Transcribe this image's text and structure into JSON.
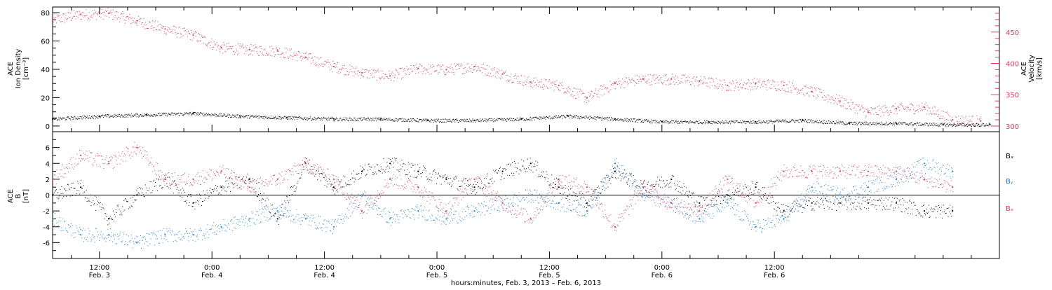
{
  "colors": {
    "velocity": "#e8365d",
    "density": "#000000",
    "bx": "#000000",
    "by": "#1a7fe0",
    "bz": "#e8365d"
  },
  "chart_data": [
    {
      "type": "scatter",
      "panel": "solar-wind",
      "ylabel_lines": [
        "ACE",
        "Ion Density",
        "[cm⁻³]"
      ],
      "y2label_lines": [
        "ACE",
        "Velocity",
        "[km/s]"
      ],
      "xlim_hours": [
        7.0,
        108.0
      ],
      "ylim": [
        -4,
        84
      ],
      "y2lim": [
        291,
        490
      ],
      "yticks": [
        0,
        20,
        40,
        60,
        80
      ],
      "y2ticks": [
        300,
        350,
        400,
        450
      ],
      "series": [
        {
          "axis": "right",
          "color_key": "velocity",
          "x": [
            7,
            10,
            13,
            16,
            19,
            22,
            25,
            28,
            31,
            34,
            37,
            40,
            43,
            46,
            49,
            52,
            55,
            58,
            61,
            64,
            67,
            70,
            73,
            76,
            79,
            82,
            85,
            88,
            91,
            94,
            97,
            100,
            103,
            106
          ],
          "values": [
            470,
            478,
            480,
            468,
            455,
            445,
            425,
            422,
            420,
            410,
            395,
            385,
            380,
            392,
            390,
            395,
            383,
            370,
            365,
            345,
            368,
            375,
            375,
            372,
            365,
            368,
            365,
            355,
            340,
            322,
            328,
            330,
            310,
            308
          ]
        },
        {
          "axis": "left",
          "color_key": "density",
          "x": [
            7,
            12,
            17,
            22,
            27,
            32,
            37,
            42,
            47,
            52,
            57,
            62,
            67,
            72,
            77,
            82,
            87,
            92,
            97,
            102,
            107
          ],
          "values": [
            5,
            7,
            8,
            9,
            7,
            6,
            5,
            5,
            4,
            4,
            5,
            7,
            5,
            3,
            3,
            3,
            4,
            2,
            2,
            1,
            1
          ]
        }
      ]
    },
    {
      "type": "scatter",
      "panel": "magnetic-field",
      "ylabel_lines": [
        "ACE",
        "B",
        "[nT]"
      ],
      "xlim_hours": [
        7.0,
        108.0
      ],
      "ylim": [
        -8,
        8
      ],
      "yticks": [
        -6,
        -4,
        -2,
        0,
        2,
        4,
        6
      ],
      "zero_line": true,
      "series": [
        {
          "name": "Bx",
          "color_key": "bx",
          "x": [
            7,
            10,
            13,
            16,
            19,
            22,
            25,
            28,
            31,
            34,
            37,
            40,
            43,
            46,
            49,
            52,
            55,
            58,
            61,
            64,
            67,
            70,
            73,
            76,
            79,
            82,
            85,
            88,
            91,
            94,
            97,
            100,
            103
          ],
          "values": [
            0,
            1,
            -3,
            0,
            2,
            -1,
            1,
            2,
            -3,
            4,
            1,
            3,
            4,
            3,
            2,
            1,
            3,
            4,
            1,
            -1,
            3,
            1,
            2,
            -1,
            0,
            1,
            -2,
            -1,
            -1,
            -1,
            -1,
            -2,
            -2
          ]
        },
        {
          "name": "By",
          "color_key": "by",
          "x": [
            7,
            10,
            13,
            16,
            19,
            22,
            25,
            28,
            31,
            34,
            37,
            40,
            43,
            46,
            49,
            52,
            55,
            58,
            61,
            64,
            67,
            70,
            73,
            76,
            79,
            82,
            85,
            88,
            91,
            94,
            97,
            100,
            103
          ],
          "values": [
            -3,
            -5,
            -5,
            -6,
            -5,
            -5,
            -4,
            -3,
            -2,
            -3,
            -4,
            0,
            -3,
            -2,
            -3,
            -2,
            -1,
            0,
            -1,
            -2,
            4,
            0,
            -1,
            -3,
            -1,
            -4,
            -3,
            1,
            0,
            1,
            2,
            4,
            3
          ]
        },
        {
          "name": "Bz",
          "color_key": "bz",
          "x": [
            7,
            10,
            13,
            16,
            19,
            22,
            25,
            28,
            31,
            34,
            37,
            40,
            43,
            46,
            49,
            52,
            55,
            58,
            61,
            64,
            67,
            70,
            73,
            76,
            79,
            82,
            85,
            88,
            91,
            94,
            97,
            100,
            103
          ],
          "values": [
            2,
            5,
            4,
            6,
            2,
            2,
            3,
            1,
            2,
            4,
            2,
            -2,
            2,
            1,
            -2,
            2,
            -1,
            -3,
            2,
            1,
            -4,
            1,
            -1,
            -2,
            2,
            -1,
            3,
            3,
            3,
            3,
            3,
            2,
            1
          ]
        }
      ]
    }
  ],
  "x_axis": {
    "ticks": [
      {
        "hour": 12,
        "time": "12:00",
        "date": "Feb. 3"
      },
      {
        "hour": 24,
        "time": "0:00",
        "date": "Feb. 4"
      },
      {
        "hour": 36,
        "time": "12:00",
        "date": "Feb. 4"
      },
      {
        "hour": 48,
        "time": "0:00",
        "date": "Feb. 5"
      },
      {
        "hour": 60,
        "time": "12:00",
        "date": "Feb. 5"
      },
      {
        "hour": 72,
        "time": "0:00",
        "date": "Feb. 6"
      },
      {
        "hour": 84,
        "time": "12:00",
        "date": "Feb. 6"
      }
    ],
    "label": "hours:minutes, Feb.  3, 2013 – Feb.  6, 2013"
  },
  "legend": {
    "bx": "Bₓ",
    "by": "Bᵧ",
    "bz": "Bₔ"
  }
}
